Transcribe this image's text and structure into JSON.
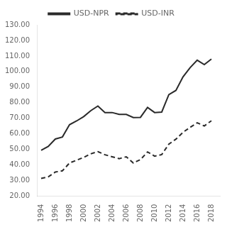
{
  "chart_data": {
    "type": "line",
    "x": [
      1994,
      1995,
      1996,
      1997,
      1998,
      1999,
      2000,
      2001,
      2002,
      2003,
      2004,
      2005,
      2006,
      2007,
      2008,
      2009,
      2010,
      2011,
      2012,
      2013,
      2014,
      2015,
      2016,
      2017,
      2018
    ],
    "series": [
      {
        "name": "USD-NPR",
        "color": "#2a2a2a",
        "line_style": "solid",
        "values": [
          49.4,
          51.9,
          56.7,
          58.0,
          65.9,
          68.3,
          71.1,
          74.9,
          77.9,
          73.7,
          73.7,
          72.5,
          72.5,
          70.5,
          70.6,
          77.0,
          73.7,
          74.0,
          85.2,
          87.9,
          96.6,
          102.5,
          107.3,
          104.5,
          108.0
        ]
      },
      {
        "name": "USD-INR",
        "color": "#2a2a2a",
        "line_style": "dashed",
        "values": [
          31.4,
          32.4,
          35.5,
          36.3,
          41.3,
          43.1,
          44.9,
          47.2,
          48.6,
          46.6,
          45.3,
          44.1,
          45.3,
          41.3,
          43.5,
          48.4,
          45.7,
          46.7,
          53.4,
          56.6,
          61.0,
          64.2,
          67.1,
          65.1,
          68.4
        ]
      }
    ],
    "xlim": [
      1993.5,
      2019.2
    ],
    "xticks": [
      1994,
      1996,
      1998,
      2000,
      2002,
      2004,
      2006,
      2008,
      2010,
      2012,
      2014,
      2016,
      2018
    ],
    "ylim": [
      20,
      130
    ],
    "yticks": [
      {
        "value": 20,
        "label": "20.00"
      },
      {
        "value": 30,
        "label": "30.00"
      },
      {
        "value": 40,
        "label": "40.00"
      },
      {
        "value": 50,
        "label": "50.00"
      },
      {
        "value": 60,
        "label": "60.00"
      },
      {
        "value": 70,
        "label": "70.00"
      },
      {
        "value": 80,
        "label": "80.00"
      },
      {
        "value": 90,
        "label": "90.00"
      },
      {
        "value": 100,
        "label": "100.00"
      },
      {
        "value": 110,
        "label": "110.00"
      },
      {
        "value": 120,
        "label": "120.00"
      },
      {
        "value": 130,
        "label": "130.00"
      }
    ],
    "grid": false,
    "legend": "top"
  }
}
